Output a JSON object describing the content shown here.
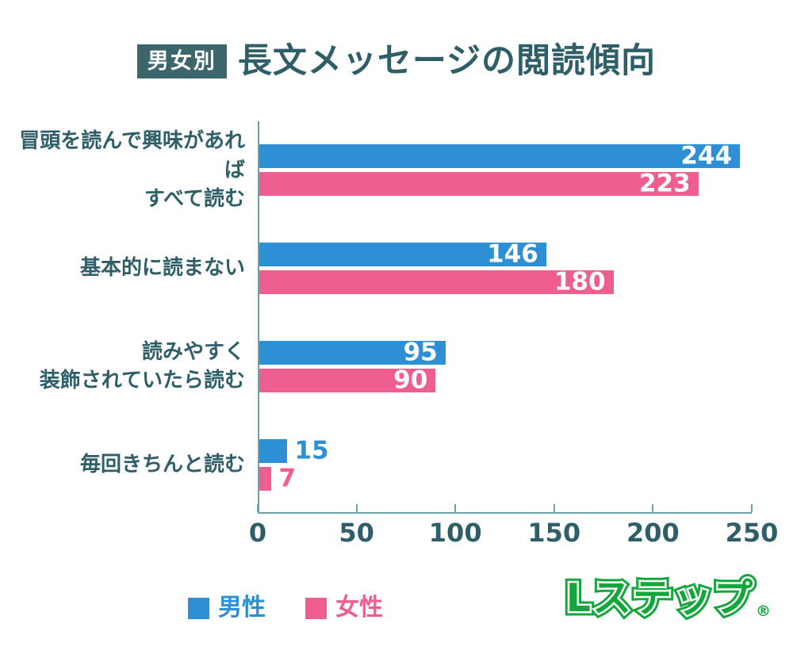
{
  "title": {
    "badge": "男女別",
    "text": "長文メッセージの閲読傾向"
  },
  "chart_data": {
    "type": "bar",
    "orientation": "horizontal",
    "title": "男女別 長文メッセージの閲読傾向",
    "categories": [
      "冒頭を読んで興味があれば\nすべて読む",
      "基本的に読まない",
      "読みやすく\n装飾されていたら読む",
      "毎回きちんと読む"
    ],
    "series": [
      {
        "name": "男性",
        "color": "#2f8fd4",
        "values": [
          244,
          146,
          95,
          15
        ]
      },
      {
        "name": "女性",
        "color": "#ef5e91",
        "values": [
          223,
          180,
          90,
          7
        ]
      }
    ],
    "xlabel": "",
    "ylabel": "",
    "xlim": [
      0,
      250
    ],
    "x_ticks": [
      0,
      50,
      100,
      150,
      200,
      250
    ],
    "grid": false,
    "legend_position": "bottom",
    "value_labels": true,
    "value_label_outside_threshold": 30
  },
  "legend": {
    "items": [
      {
        "label": "男性",
        "color": "#2f8fd4"
      },
      {
        "label": "女性",
        "color": "#ef5e91"
      }
    ]
  },
  "logo": {
    "text": "Lステップ",
    "registered": "®"
  },
  "colors": {
    "teal_text": "#2e5f68",
    "badge_bg": "#3b666c",
    "axis": "#6aa3a8",
    "male_blue": "#2f8fd4",
    "female_pink": "#ef5e91",
    "logo_green": "#12a63b",
    "background": "#ffffff"
  }
}
